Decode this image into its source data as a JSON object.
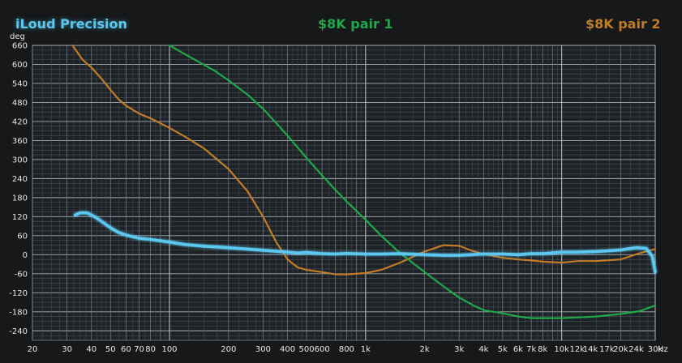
{
  "chart_data": {
    "type": "line",
    "title": "",
    "xscale": "log",
    "xlim": [
      20,
      30000
    ],
    "ylim": [
      -270,
      660
    ],
    "ylabel": "deg",
    "xunit": "Hz",
    "grid": true,
    "legend_placement": "top",
    "y_ticks": [
      {
        "v": 660,
        "label": "660"
      },
      {
        "v": 600,
        "label": "600"
      },
      {
        "v": 540,
        "label": "540"
      },
      {
        "v": 480,
        "label": "480"
      },
      {
        "v": 420,
        "label": "420"
      },
      {
        "v": 360,
        "label": "360"
      },
      {
        "v": 300,
        "label": "300"
      },
      {
        "v": 240,
        "label": "240"
      },
      {
        "v": 180,
        "label": "180"
      },
      {
        "v": 120,
        "label": "120"
      },
      {
        "v": 60,
        "label": "60"
      },
      {
        "v": 0,
        "label": "0"
      },
      {
        "v": -60,
        "label": "-60"
      },
      {
        "v": -120,
        "label": "-120"
      },
      {
        "v": -180,
        "label": "-180"
      },
      {
        "v": -240,
        "label": "-240"
      }
    ],
    "x_ticks": [
      {
        "v": 20,
        "label": "20"
      },
      {
        "v": 30,
        "label": "30"
      },
      {
        "v": 40,
        "label": "40"
      },
      {
        "v": 50,
        "label": "50"
      },
      {
        "v": 60,
        "label": "60"
      },
      {
        "v": 70,
        "label": "70"
      },
      {
        "v": 80,
        "label": "80"
      },
      {
        "v": 100,
        "label": "100"
      },
      {
        "v": 200,
        "label": "200"
      },
      {
        "v": 300,
        "label": "300"
      },
      {
        "v": 400,
        "label": "400"
      },
      {
        "v": 500,
        "label": "500"
      },
      {
        "v": 600,
        "label": "600"
      },
      {
        "v": 800,
        "label": "800"
      },
      {
        "v": 1000,
        "label": "1k"
      },
      {
        "v": 2000,
        "label": "2k"
      },
      {
        "v": 3000,
        "label": "3k"
      },
      {
        "v": 4000,
        "label": "4k"
      },
      {
        "v": 5000,
        "label": "5k"
      },
      {
        "v": 6000,
        "label": "6k"
      },
      {
        "v": 7000,
        "label": "7k"
      },
      {
        "v": 8000,
        "label": "8k"
      },
      {
        "v": 10000,
        "label": "10k"
      },
      {
        "v": 12000,
        "label": "12k"
      },
      {
        "v": 14000,
        "label": "14k"
      },
      {
        "v": 17000,
        "label": "17k"
      },
      {
        "v": 20000,
        "label": "20k"
      },
      {
        "v": 24000,
        "label": "24k"
      },
      {
        "v": 30000,
        "label": "30k"
      }
    ],
    "series": [
      {
        "name": "iLoud Precision",
        "color": "#5cc8f0",
        "x": [
          33,
          35,
          38,
          42,
          45,
          50,
          55,
          60,
          70,
          80,
          100,
          120,
          150,
          200,
          300,
          400,
          450,
          500,
          600,
          700,
          800,
          1000,
          1200,
          1500,
          2000,
          2500,
          3000,
          4000,
          5000,
          6000,
          7000,
          8000,
          10000,
          12000,
          15000,
          20000,
          24000,
          27000,
          29000,
          30000
        ],
        "y": [
          125,
          132,
          132,
          118,
          105,
          85,
          70,
          62,
          52,
          48,
          40,
          32,
          27,
          22,
          14,
          8,
          5,
          7,
          3,
          2,
          4,
          2,
          2,
          3,
          0,
          -2,
          -2,
          2,
          2,
          0,
          3,
          3,
          8,
          8,
          10,
          15,
          22,
          20,
          -5,
          -55
        ]
      },
      {
        "name": "$8K pair 1",
        "color": "#1fa84a",
        "x": [
          100,
          130,
          170,
          200,
          250,
          300,
          350,
          400,
          500,
          600,
          700,
          800,
          1000,
          1200,
          1500,
          2000,
          2500,
          3000,
          3500,
          4000,
          5000,
          6000,
          7000,
          8000,
          10000,
          12000,
          15000,
          20000,
          25000,
          30000
        ],
        "y": [
          660,
          620,
          580,
          550,
          505,
          460,
          415,
          375,
          305,
          250,
          205,
          168,
          110,
          60,
          5,
          -55,
          -100,
          -135,
          -158,
          -175,
          -185,
          -195,
          -200,
          -200,
          -200,
          -198,
          -195,
          -187,
          -178,
          -160
        ]
      },
      {
        "name": "$8K pair 2",
        "color": "#c07c28",
        "x": [
          32,
          36,
          40,
          45,
          50,
          55,
          60,
          70,
          80,
          100,
          120,
          150,
          200,
          250,
          300,
          350,
          400,
          450,
          500,
          600,
          700,
          800,
          1000,
          1200,
          1500,
          2000,
          2500,
          3000,
          3500,
          4000,
          5000,
          6000,
          7000,
          8000,
          10000,
          12000,
          15000,
          20000,
          25000,
          30000
        ],
        "y": [
          665,
          615,
          590,
          555,
          520,
          490,
          470,
          445,
          430,
          400,
          372,
          335,
          270,
          200,
          120,
          40,
          -15,
          -40,
          -48,
          -55,
          -62,
          -62,
          -58,
          -48,
          -25,
          10,
          30,
          28,
          12,
          2,
          -10,
          -15,
          -18,
          -22,
          -25,
          -20,
          -20,
          -15,
          5,
          18
        ]
      }
    ]
  }
}
